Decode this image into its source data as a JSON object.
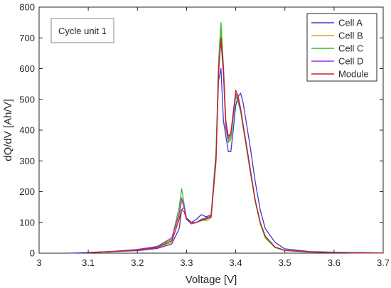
{
  "chart_data": {
    "type": "line",
    "xlabel": "Voltage [V]",
    "ylabel": "dQ/dV [Ah/V]",
    "xlim": [
      3.0,
      3.7
    ],
    "ylim": [
      0,
      800
    ],
    "xticks": [
      3,
      3.1,
      3.2,
      3.3,
      3.4,
      3.5,
      3.6,
      3.7
    ],
    "xtick_labels": [
      "3",
      "3.1",
      "3.2",
      "3.3",
      "3.4",
      "3.5",
      "3.6",
      "3.7"
    ],
    "yticks": [
      0,
      100,
      200,
      300,
      400,
      500,
      600,
      700,
      800
    ],
    "ytick_labels": [
      "0",
      "100",
      "200",
      "300",
      "400",
      "500",
      "600",
      "700",
      "800"
    ],
    "grid": false,
    "legend_position": "top-right",
    "annotation": "Cycle unit 1",
    "series": [
      {
        "name": "Cell A",
        "color": "#3a3ad0",
        "x": [
          3.06,
          3.1,
          3.15,
          3.2,
          3.24,
          3.27,
          3.285,
          3.29,
          3.295,
          3.3,
          3.31,
          3.32,
          3.33,
          3.34,
          3.35,
          3.36,
          3.365,
          3.37,
          3.375,
          3.38,
          3.385,
          3.39,
          3.395,
          3.4,
          3.405,
          3.41,
          3.415,
          3.42,
          3.43,
          3.44,
          3.45,
          3.46,
          3.48,
          3.5,
          3.55,
          3.6,
          3.65,
          3.7
        ],
        "y": [
          0,
          2,
          5,
          8,
          15,
          30,
          80,
          140,
          150,
          115,
          100,
          110,
          125,
          118,
          125,
          330,
          560,
          600,
          430,
          380,
          330,
          330,
          400,
          480,
          510,
          520,
          490,
          440,
          340,
          230,
          140,
          80,
          35,
          14,
          5,
          3,
          2,
          1
        ]
      },
      {
        "name": "Cell B",
        "color": "#d9a21a",
        "x": [
          3.1,
          3.15,
          3.2,
          3.24,
          3.27,
          3.285,
          3.29,
          3.295,
          3.3,
          3.31,
          3.32,
          3.33,
          3.34,
          3.35,
          3.36,
          3.365,
          3.37,
          3.375,
          3.38,
          3.385,
          3.39,
          3.395,
          3.4,
          3.405,
          3.41,
          3.415,
          3.42,
          3.43,
          3.44,
          3.45,
          3.46,
          3.48,
          3.5,
          3.55,
          3.6,
          3.65,
          3.7
        ],
        "y": [
          2,
          5,
          10,
          18,
          35,
          120,
          170,
          150,
          110,
          95,
          100,
          110,
          105,
          115,
          300,
          600,
          720,
          590,
          400,
          360,
          380,
          450,
          520,
          500,
          470,
          420,
          370,
          270,
          170,
          100,
          55,
          20,
          9,
          4,
          2,
          1,
          1
        ]
      },
      {
        "name": "Cell C",
        "color": "#2fbf2f",
        "x": [
          3.1,
          3.15,
          3.2,
          3.24,
          3.27,
          3.285,
          3.29,
          3.295,
          3.3,
          3.31,
          3.32,
          3.33,
          3.34,
          3.35,
          3.36,
          3.365,
          3.37,
          3.375,
          3.38,
          3.385,
          3.39,
          3.395,
          3.4,
          3.405,
          3.41,
          3.415,
          3.42,
          3.43,
          3.44,
          3.45,
          3.46,
          3.48,
          3.5,
          3.55,
          3.6,
          3.65,
          3.7
        ],
        "y": [
          2,
          5,
          10,
          20,
          45,
          150,
          210,
          160,
          110,
          95,
          100,
          105,
          110,
          120,
          330,
          620,
          750,
          610,
          420,
          360,
          370,
          440,
          510,
          490,
          460,
          410,
          360,
          260,
          165,
          95,
          50,
          18,
          8,
          4,
          2,
          1,
          1
        ]
      },
      {
        "name": "Cell D",
        "color": "#a22fd0",
        "x": [
          3.1,
          3.15,
          3.2,
          3.24,
          3.27,
          3.285,
          3.29,
          3.295,
          3.3,
          3.31,
          3.32,
          3.33,
          3.34,
          3.35,
          3.36,
          3.365,
          3.37,
          3.375,
          3.38,
          3.385,
          3.39,
          3.395,
          3.4,
          3.405,
          3.41,
          3.415,
          3.42,
          3.43,
          3.44,
          3.45,
          3.46,
          3.48,
          3.5,
          3.55,
          3.6,
          3.65,
          3.7
        ],
        "y": [
          2,
          6,
          12,
          22,
          50,
          130,
          180,
          150,
          110,
          95,
          100,
          110,
          115,
          120,
          310,
          600,
          690,
          580,
          410,
          370,
          390,
          460,
          520,
          500,
          465,
          415,
          365,
          265,
          170,
          100,
          55,
          20,
          9,
          4,
          2,
          1,
          1
        ]
      },
      {
        "name": "Module",
        "color": "#c8211e",
        "x": [
          3.1,
          3.15,
          3.2,
          3.24,
          3.27,
          3.285,
          3.29,
          3.295,
          3.3,
          3.31,
          3.32,
          3.33,
          3.34,
          3.35,
          3.36,
          3.365,
          3.37,
          3.375,
          3.38,
          3.385,
          3.39,
          3.395,
          3.4,
          3.405,
          3.41,
          3.415,
          3.42,
          3.43,
          3.44,
          3.45,
          3.46,
          3.48,
          3.5,
          3.55,
          3.6,
          3.65,
          3.7
        ],
        "y": [
          2,
          5,
          10,
          18,
          40,
          110,
          140,
          135,
          110,
          100,
          100,
          108,
          112,
          118,
          300,
          580,
          700,
          600,
          430,
          380,
          390,
          450,
          530,
          510,
          470,
          420,
          370,
          270,
          170,
          100,
          55,
          20,
          9,
          4,
          2,
          1,
          1
        ]
      }
    ]
  }
}
